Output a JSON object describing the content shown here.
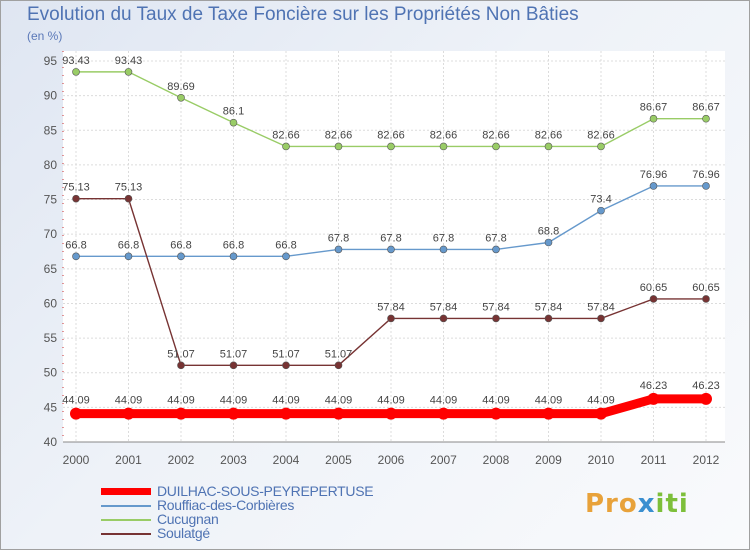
{
  "chart_data": {
    "type": "line",
    "title": "Evolution du Taux de Taxe Foncière sur les Propriétés Non Bâties",
    "unit_label": "(en %)",
    "xlabel": "",
    "ylabel": "",
    "ylim": [
      40,
      95
    ],
    "y_ticks": [
      "40",
      "45",
      "50",
      "55",
      "60",
      "65",
      "70",
      "75",
      "80",
      "85",
      "90",
      "95"
    ],
    "categories": [
      "2000",
      "2001",
      "2002",
      "2003",
      "2004",
      "2005",
      "2006",
      "2007",
      "2008",
      "2009",
      "2010",
      "2011",
      "2012"
    ],
    "series": [
      {
        "name": "DUILHAC-SOUS-PEYREPERTUSE",
        "color": "#ff0000",
        "values": [
          44.09,
          44.09,
          44.09,
          44.09,
          44.09,
          44.09,
          44.09,
          44.09,
          44.09,
          44.09,
          44.09,
          46.23,
          46.23
        ],
        "labels": [
          "44.09",
          "44.09",
          "44.09",
          "44.09",
          "44.09",
          "44.09",
          "44.09",
          "44.09",
          "44.09",
          "44.09",
          "44.09",
          "46.23",
          "46.23"
        ]
      },
      {
        "name": "Rouffiac-des-Corbières",
        "color": "#6699cc",
        "values": [
          66.8,
          66.8,
          66.8,
          66.8,
          66.8,
          67.8,
          67.8,
          67.8,
          67.8,
          68.8,
          73.4,
          76.96,
          76.96
        ],
        "labels": [
          "66.8",
          "66.8",
          "66.8",
          "66.8",
          "66.8",
          "67.8",
          "67.8",
          "67.8",
          "67.8",
          "68.8",
          "73.4",
          "76.96",
          "76.96"
        ]
      },
      {
        "name": "Cucugnan",
        "color": "#99cc66",
        "values": [
          93.43,
          93.43,
          89.69,
          86.1,
          82.66,
          82.66,
          82.66,
          82.66,
          82.66,
          82.66,
          82.66,
          86.67,
          86.67
        ],
        "labels": [
          "93.43",
          "93.43",
          "89.69",
          "86.1",
          "82.66",
          "82.66",
          "82.66",
          "82.66",
          "82.66",
          "82.66",
          "82.66",
          "86.67",
          "86.67"
        ]
      },
      {
        "name": "Soulatgé",
        "color": "#773333",
        "values": [
          75.13,
          75.13,
          51.07,
          51.07,
          51.07,
          51.07,
          57.84,
          57.84,
          57.84,
          57.84,
          57.84,
          60.65,
          60.65
        ],
        "labels": [
          "75.13",
          "75.13",
          "51.07",
          "51.07",
          "51.07",
          "51.07",
          "57.84",
          "57.84",
          "57.84",
          "57.84",
          "57.84",
          "60.65",
          "60.65"
        ]
      }
    ],
    "grid": true,
    "legend": "bottom-left"
  },
  "brand": {
    "part1": "Pro",
    "part2": "x",
    "part3": "iti"
  }
}
